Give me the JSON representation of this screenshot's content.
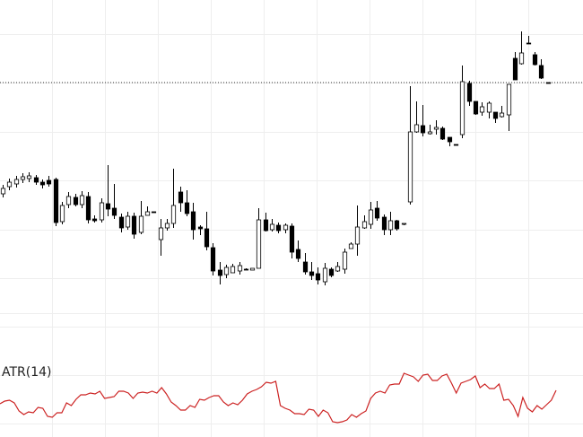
{
  "chart_data": [
    {
      "type": "candlestick",
      "grid": true,
      "reference_line": {
        "style": "dotted",
        "color": "#333333"
      },
      "colors": {
        "up_body": "#ffffff",
        "down_body": "#000000",
        "wick": "#000000",
        "grid": "#eeeeee"
      },
      "candles": [
        [
          216,
          210,
          220,
          206
        ],
        [
          208,
          203,
          212,
          199
        ],
        [
          205,
          200,
          209,
          196
        ],
        [
          200,
          197,
          204,
          193
        ],
        [
          199,
          196,
          203,
          192
        ],
        [
          198,
          203,
          206,
          195
        ],
        [
          203,
          206,
          210,
          200
        ],
        [
          201,
          205,
          208,
          196
        ],
        [
          200,
          248,
          252,
          198
        ],
        [
          247,
          229,
          250,
          225
        ],
        [
          228,
          219,
          232,
          214
        ],
        [
          220,
          228,
          230,
          216
        ],
        [
          228,
          218,
          232,
          213
        ],
        [
          219,
          245,
          249,
          214
        ],
        [
          244,
          246,
          248,
          240
        ],
        [
          245,
          226,
          248,
          221
        ],
        [
          227,
          233,
          241,
          184
        ],
        [
          232,
          240,
          244,
          205
        ],
        [
          242,
          254,
          259,
          238
        ],
        [
          253,
          241,
          256,
          236
        ],
        [
          241,
          261,
          266,
          237
        ],
        [
          259,
          241,
          261,
          224
        ],
        [
          240,
          236,
          240,
          230
        ],
        [
          236,
          236,
          236,
          236
        ],
        [
          267,
          254,
          285,
          244
        ],
        [
          254,
          249,
          257,
          244
        ],
        [
          249,
          229,
          254,
          188
        ],
        [
          214,
          226,
          236,
          208
        ],
        [
          226,
          238,
          241,
          212
        ],
        [
          236,
          256,
          267,
          226
        ],
        [
          253,
          255,
          262,
          251
        ],
        [
          255,
          275,
          279,
          236
        ],
        [
          276,
          302,
          307,
          271
        ],
        [
          301,
          307,
          317,
          292
        ],
        [
          306,
          298,
          310,
          295
        ],
        [
          304,
          297,
          301,
          294
        ],
        [
          302,
          296,
          306,
          292
        ],
        [
          300,
          301,
          301,
          299
        ],
        [
          301,
          299,
          301,
          299
        ],
        [
          299,
          245,
          299,
          232
        ],
        [
          245,
          257,
          258,
          237
        ],
        [
          256,
          250,
          258,
          244
        ],
        [
          251,
          257,
          260,
          248
        ],
        [
          256,
          251,
          260,
          249
        ],
        [
          252,
          281,
          288,
          249
        ],
        [
          278,
          288,
          292,
          268
        ],
        [
          292,
          303,
          306,
          282
        ],
        [
          303,
          307,
          312,
          292
        ],
        [
          305,
          312,
          317,
          298
        ],
        [
          314,
          299,
          318,
          293
        ],
        [
          300,
          307,
          309,
          298
        ],
        [
          302,
          297,
          303,
          292
        ],
        [
          300,
          281,
          305,
          277
        ],
        [
          277,
          272,
          277,
          270
        ],
        [
          272,
          253,
          285,
          229
        ],
        [
          254,
          247,
          255,
          240
        ],
        [
          250,
          234,
          255,
          225
        ],
        [
          232,
          243,
          246,
          224
        ],
        [
          242,
          256,
          262,
          239
        ],
        [
          256,
          246,
          262,
          236
        ],
        [
          246,
          255,
          257,
          245
        ],
        [
          250,
          249,
          251,
          249
        ],
        [
          225,
          147,
          228,
          96
        ],
        [
          147,
          139,
          148,
          113
        ],
        [
          140,
          148,
          152,
          117
        ],
        [
          149,
          147,
          150,
          139
        ],
        [
          144,
          142,
          150,
          134
        ],
        [
          143,
          155,
          156,
          141
        ],
        [
          153,
          158,
          163,
          153
        ],
        [
          161,
          161,
          161,
          161
        ],
        [
          150,
          91,
          154,
          73
        ],
        [
          93,
          113,
          118,
          90
        ],
        [
          113,
          127,
          128,
          118
        ],
        [
          125,
          119,
          129,
          114
        ],
        [
          125,
          115,
          132,
          113
        ],
        [
          125,
          132,
          137,
          126
        ],
        [
          130,
          126,
          131,
          118
        ],
        [
          128,
          94,
          146,
          117
        ],
        [
          65,
          89,
          89,
          58
        ],
        [
          71,
          59,
          72,
          35
        ],
        [
          48,
          48,
          48,
          40
        ],
        [
          61,
          72,
          73,
          58
        ],
        [
          73,
          87,
          88,
          66
        ],
        [
          92,
          93,
          93,
          93
        ]
      ],
      "atr_indicator": {
        "label": "ATR(14)",
        "color": "#cc2222",
        "values": [
          450,
          447,
          446,
          449,
          458,
          462,
          459,
          460,
          454,
          455,
          464,
          465,
          460,
          460,
          449,
          452,
          445,
          440,
          440,
          438,
          439,
          436,
          444,
          443,
          442,
          436,
          436,
          438,
          444,
          438,
          437,
          438,
          436,
          438,
          432,
          439,
          448,
          452,
          457,
          457,
          452,
          454,
          445,
          446,
          443,
          441,
          441,
          448,
          452,
          449,
          451,
          446,
          439,
          436,
          434,
          431,
          426,
          427,
          425,
          452,
          455,
          457,
          461,
          461,
          462,
          456,
          457,
          464,
          457,
          460,
          470,
          471,
          470,
          468,
          462,
          465,
          461,
          458,
          444,
          438,
          436,
          438,
          429,
          428,
          428,
          416,
          418,
          420,
          425,
          418,
          417,
          424,
          424,
          419,
          417,
          427,
          438,
          427,
          425,
          423,
          419,
          432,
          428,
          433,
          433,
          428,
          446,
          445,
          452,
          464,
          443,
          455,
          459,
          452,
          456,
          451,
          446,
          435
        ]
      }
    }
  ]
}
